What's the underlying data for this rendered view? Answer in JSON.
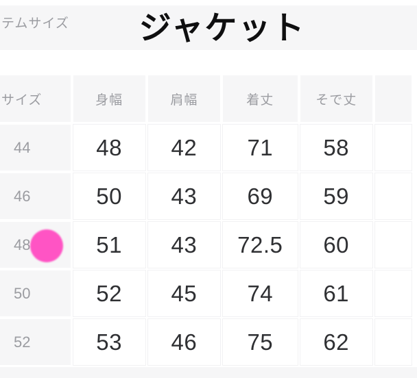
{
  "header": {
    "partial_label": "テムサイズ",
    "title": "ジャケット"
  },
  "size_table": {
    "columns": [
      "サイズ",
      "身幅",
      "肩幅",
      "着丈",
      "そで丈"
    ],
    "rows": [
      {
        "size": "44",
        "values": [
          "48",
          "42",
          "71",
          "58"
        ]
      },
      {
        "size": "46",
        "values": [
          "50",
          "43",
          "69",
          "59"
        ]
      },
      {
        "size": "48",
        "values": [
          "51",
          "43",
          "72.5",
          "60"
        ]
      },
      {
        "size": "50",
        "values": [
          "52",
          "45",
          "74",
          "61"
        ]
      },
      {
        "size": "52",
        "values": [
          "53",
          "46",
          "75",
          "62"
        ]
      }
    ],
    "selected_size": "48"
  },
  "colors": {
    "accent_pink": "#ff54c4",
    "band_gray": "#f6f6f7",
    "muted_text": "#9b9ca1",
    "data_text": "#2f3033"
  }
}
